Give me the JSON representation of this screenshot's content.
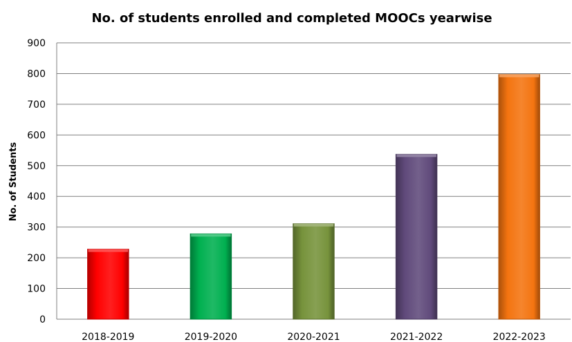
{
  "chart_data": {
    "type": "bar",
    "title": "No. of students enrolled and completed MOOCs yearwise",
    "xlabel": "",
    "ylabel": "No. of Students",
    "categories": [
      "2018-2019",
      "2019-2020",
      "2020-2021",
      "2021-2022",
      "2022-2023"
    ],
    "values": [
      228,
      278,
      311,
      537,
      797
    ],
    "colors": [
      "#ff0000",
      "#00b050",
      "#77933c",
      "#604a7b",
      "#f47410"
    ],
    "ylim": [
      0,
      900
    ],
    "yticks": [
      0,
      100,
      200,
      300,
      400,
      500,
      600,
      700,
      800,
      900
    ],
    "grid": true,
    "legend": "none"
  }
}
